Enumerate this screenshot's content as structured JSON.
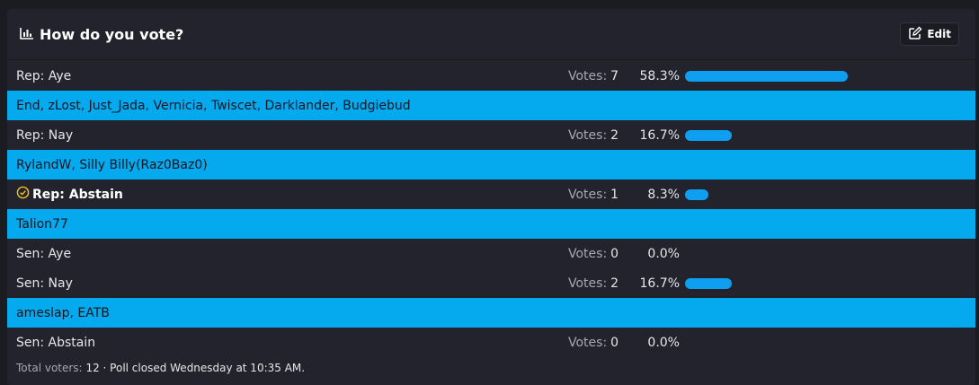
{
  "poll": {
    "title": "How do you vote?",
    "edit_label": "Edit",
    "votes_label": "Votes:",
    "bar_color": "#0f9ff0",
    "voters_color": "#05a9ee",
    "options": [
      {
        "label": "Rep: Aye",
        "votes": "7",
        "percent": "58.3%",
        "share": 58.3,
        "voters": "End, zLost, Just_Jada, Vernicia, Twiscet, Darklander, Budgiebud",
        "selected": false
      },
      {
        "label": "Rep: Nay",
        "votes": "2",
        "percent": "16.7%",
        "share": 16.7,
        "voters": "RylandW, Silly Billy(Raz0Baz0)",
        "selected": false
      },
      {
        "label": "Rep: Abstain",
        "votes": "1",
        "percent": "8.3%",
        "share": 8.3,
        "voters": "Talion77",
        "selected": true
      },
      {
        "label": "Sen: Aye",
        "votes": "0",
        "percent": "0.0%",
        "share": 0,
        "voters": "",
        "selected": false
      },
      {
        "label": "Sen: Nay",
        "votes": "2",
        "percent": "16.7%",
        "share": 16.7,
        "voters": "ameslap, EATB",
        "selected": false
      },
      {
        "label": "Sen: Abstain",
        "votes": "0",
        "percent": "0.0%",
        "share": 0,
        "voters": "",
        "selected": false
      }
    ],
    "footer": {
      "total_label": "Total voters:",
      "total": "12",
      "closed_text": "· Poll closed Wednesday at 10:35 AM."
    }
  }
}
